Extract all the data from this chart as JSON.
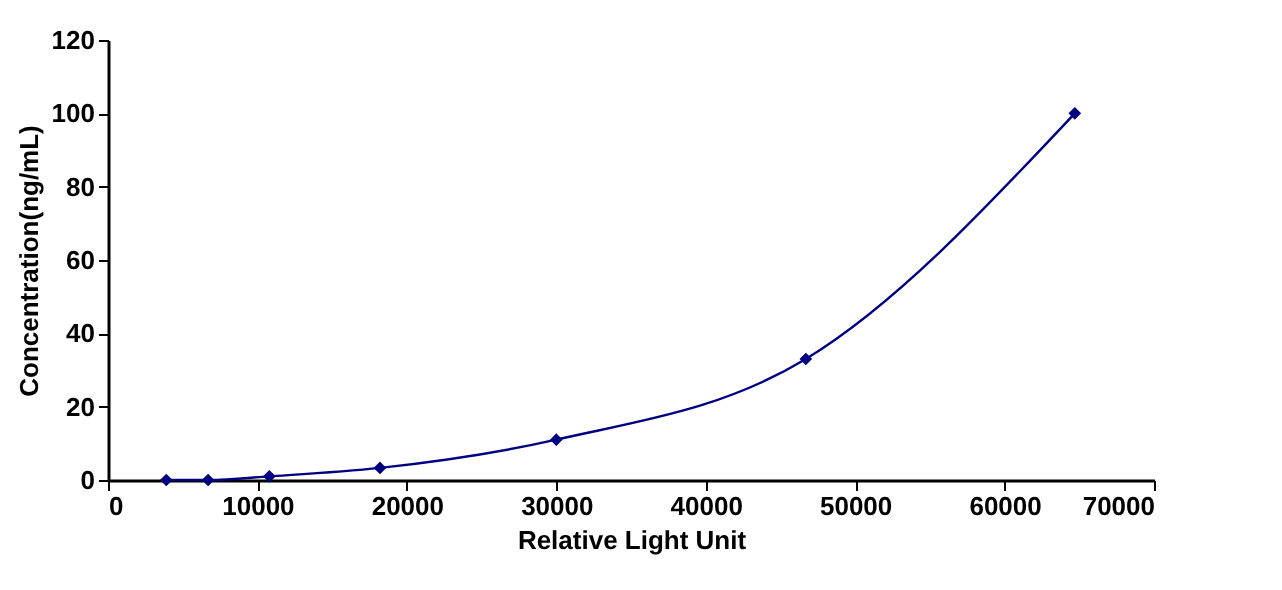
{
  "chart_data": {
    "type": "line",
    "xlabel": "Relative Light Unit",
    "ylabel": "Concentration(ng/mL)",
    "x": [
      3900,
      6700,
      10800,
      18200,
      30000,
      46700,
      64700
    ],
    "series": [
      {
        "color": "#000080",
        "values": [
          0,
          0,
          1,
          3.3,
          11,
          33,
          100
        ]
      }
    ],
    "xlim": [
      0,
      70000
    ],
    "xticks": [
      0,
      10000,
      20000,
      30000,
      40000,
      50000,
      60000,
      70000
    ],
    "ylim": [
      0,
      120
    ],
    "yticks": [
      0,
      20,
      40,
      60,
      80,
      100,
      120
    ],
    "grid": false,
    "marker": "diamond",
    "line_style": "solid"
  }
}
